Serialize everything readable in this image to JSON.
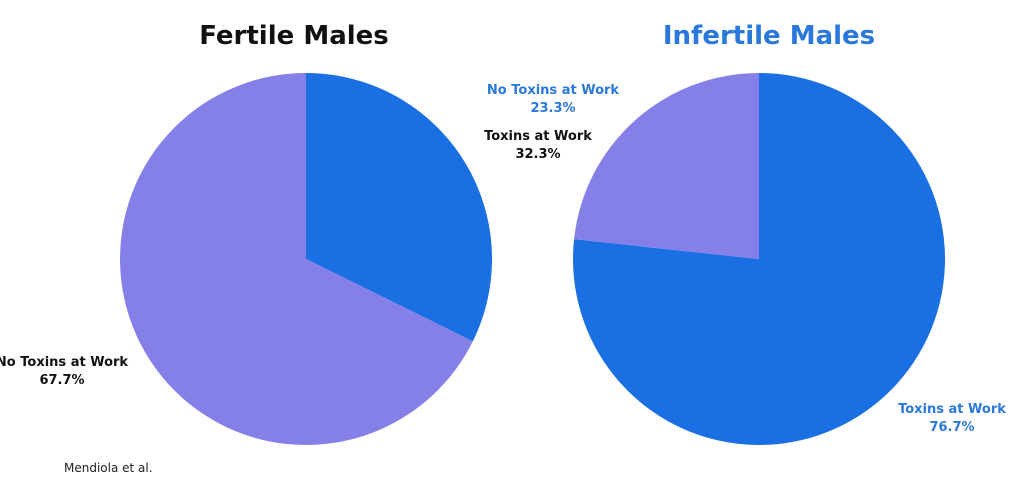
{
  "chart_data": [
    {
      "type": "pie",
      "title": "Fertile Males",
      "title_color": "#111111",
      "start_angle_deg": 0,
      "direction": "clockwise",
      "slices": [
        {
          "label": "Toxins at Work",
          "value": 32.3,
          "value_text": "32.3%",
          "color": "#1a6fe3",
          "label_color": "#111111"
        },
        {
          "label": "No Toxins at Work",
          "value": 67.7,
          "value_text": "67.7%",
          "color": "#8580e8",
          "label_color": "#111111"
        }
      ]
    },
    {
      "type": "pie",
      "title": "Infertile Males",
      "title_color": "#2a78dc",
      "start_angle_deg": 0,
      "direction": "clockwise",
      "slices": [
        {
          "label": "Toxins at Work",
          "value": 76.7,
          "value_text": "76.7%",
          "color": "#1a6fe3",
          "label_color": "#2a78dc"
        },
        {
          "label": "No Toxins at Work",
          "value": 23.3,
          "value_text": "23.3%",
          "color": "#8580e8",
          "label_color": "#2a78dc"
        }
      ]
    }
  ],
  "source_note": "Mendiola et al."
}
